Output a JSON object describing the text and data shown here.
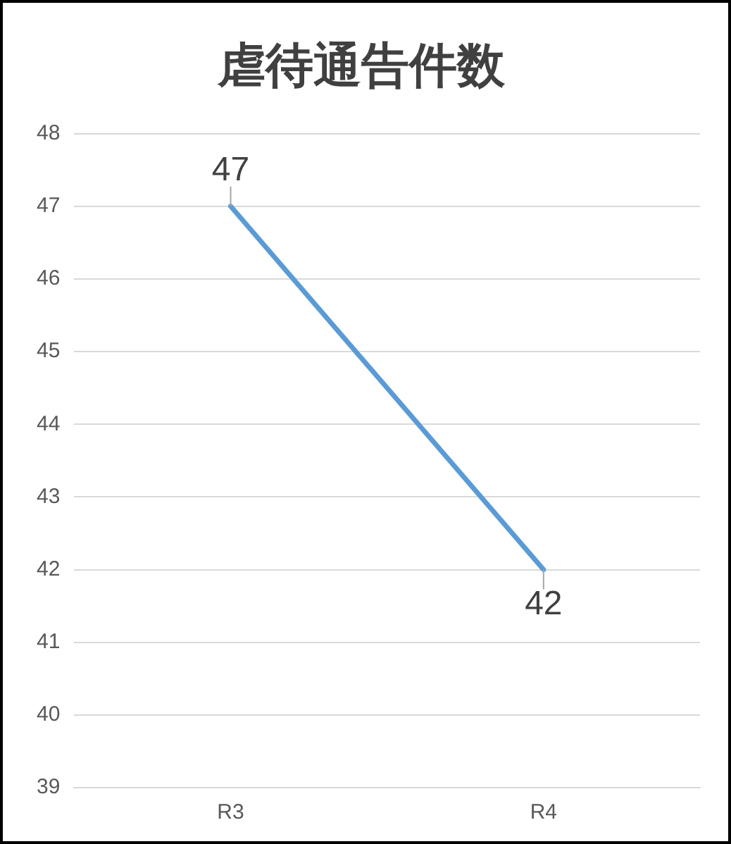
{
  "chart_data": {
    "type": "line",
    "title": "虐待通告件数",
    "categories": [
      "R3",
      "R4"
    ],
    "series": [
      {
        "color": "#5b9bd5",
        "values": [
          47,
          42
        ]
      }
    ],
    "ylim": [
      39,
      48
    ],
    "yticks": [
      39,
      40,
      41,
      42,
      43,
      44,
      45,
      46,
      47,
      48
    ],
    "grid": "y",
    "legend": false,
    "marker": "none",
    "line_style": "solid",
    "data_labels": true
  }
}
